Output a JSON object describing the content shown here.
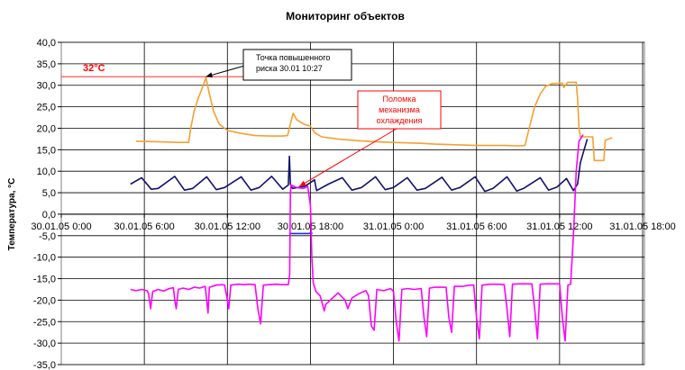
{
  "chart_data": {
    "type": "line",
    "title": "Мониторинг объектов",
    "ylabel": "Температура, °С",
    "xlabel": "",
    "ylim": [
      -35,
      40
    ],
    "y_step": 5,
    "xlim": [
      0,
      42
    ],
    "grid": true,
    "x_ticks": [
      {
        "x": 0,
        "label": "30.01.05 0:00"
      },
      {
        "x": 6,
        "label": "30.01.05 6:00"
      },
      {
        "x": 12,
        "label": "30.01.05 12:00"
      },
      {
        "x": 18,
        "label": "30.01.05 18:00"
      },
      {
        "x": 24,
        "label": "31.01.05 0:00"
      },
      {
        "x": 30,
        "label": "31.01.05 6:00"
      },
      {
        "x": 36,
        "label": "31.01.05 12:00"
      },
      {
        "x": 42,
        "label": "31.01.05 18:00"
      }
    ],
    "threshold": {
      "value": 32,
      "label": "32°С",
      "color": "#ff4040"
    },
    "annotations": [
      {
        "id": "high-risk",
        "lines": [
          "Точка повышенного",
          "риска 30.01 10:27"
        ],
        "x": 10.45,
        "y": 32,
        "color": "#000000"
      },
      {
        "id": "breakdown",
        "lines": [
          "Поломка",
          "механизма",
          "охлаждения"
        ],
        "x": 17.2,
        "y": 6.5,
        "color": "#ff0000"
      }
    ],
    "series": [
      {
        "key": "orange",
        "color": "#f5a030",
        "points": [
          [
            5.4,
            17
          ],
          [
            6.5,
            16.9
          ],
          [
            7.5,
            16.8
          ],
          [
            8.5,
            16.7
          ],
          [
            9.2,
            16.7
          ],
          [
            9.35,
            20
          ],
          [
            9.6,
            24
          ],
          [
            9.9,
            27
          ],
          [
            10.2,
            29.5
          ],
          [
            10.45,
            31.8
          ],
          [
            10.7,
            28
          ],
          [
            11,
            24
          ],
          [
            11.4,
            21
          ],
          [
            12,
            19.5
          ],
          [
            13,
            18.8
          ],
          [
            14,
            18.3
          ],
          [
            15,
            18.2
          ],
          [
            16,
            18.2
          ],
          [
            16.35,
            18.3
          ],
          [
            16.55,
            21
          ],
          [
            16.75,
            23.5
          ],
          [
            17,
            22
          ],
          [
            17.5,
            21
          ],
          [
            18,
            20.5
          ],
          [
            18.3,
            19
          ],
          [
            18.8,
            18
          ],
          [
            20,
            17.5
          ],
          [
            21,
            17.2
          ],
          [
            22,
            17
          ],
          [
            23,
            16.8
          ],
          [
            24,
            16.7
          ],
          [
            25,
            16.6
          ],
          [
            26,
            16.5
          ],
          [
            27,
            16.3
          ],
          [
            28,
            16.2
          ],
          [
            29,
            16.1
          ],
          [
            30,
            16
          ],
          [
            31,
            16
          ],
          [
            32,
            16
          ],
          [
            33,
            15.9
          ],
          [
            33.5,
            16
          ],
          [
            33.8,
            20
          ],
          [
            34.2,
            25
          ],
          [
            34.6,
            28
          ],
          [
            35,
            29.8
          ],
          [
            35.5,
            30.4
          ],
          [
            36.2,
            30.5
          ],
          [
            36.3,
            29.5
          ],
          [
            36.6,
            30.7
          ],
          [
            37.2,
            30.7
          ],
          [
            37.3,
            27
          ],
          [
            37.4,
            20
          ],
          [
            37.5,
            18
          ],
          [
            38,
            18
          ],
          [
            38.4,
            18
          ],
          [
            38.5,
            12.5
          ],
          [
            39.2,
            12.5
          ],
          [
            39.3,
            17.2
          ],
          [
            39.8,
            17.8
          ]
        ]
      },
      {
        "key": "navy",
        "color": "#10126e",
        "points": [
          [
            5,
            7
          ],
          [
            5.8,
            8.5
          ],
          [
            6.5,
            5.8
          ],
          [
            7,
            6
          ],
          [
            8.2,
            8.8
          ],
          [
            8.9,
            5.6
          ],
          [
            9.5,
            6
          ],
          [
            10.5,
            8.7
          ],
          [
            11.2,
            5.7
          ],
          [
            11.8,
            6.2
          ],
          [
            13,
            8.7
          ],
          [
            13.7,
            5.6
          ],
          [
            14.3,
            6.2
          ],
          [
            15.2,
            8.8
          ],
          [
            16,
            5.8
          ],
          [
            16.4,
            6.8
          ],
          [
            16.48,
            13.5
          ],
          [
            16.55,
            7
          ],
          [
            16.7,
            6
          ],
          [
            17.6,
            6.5
          ],
          [
            18.3,
            8
          ],
          [
            18.35,
            7
          ],
          [
            18.45,
            5.5
          ],
          [
            19.3,
            7
          ],
          [
            20.3,
            8.5
          ],
          [
            21,
            5.6
          ],
          [
            21.7,
            6.2
          ],
          [
            22.7,
            8.7
          ],
          [
            23.4,
            5.7
          ],
          [
            24,
            6.2
          ],
          [
            25,
            8.5
          ],
          [
            25.7,
            5.6
          ],
          [
            26.3,
            6
          ],
          [
            27.5,
            8.6
          ],
          [
            28.2,
            5.6
          ],
          [
            28.8,
            6.2
          ],
          [
            29.9,
            8.7
          ],
          [
            30.6,
            5.3
          ],
          [
            31.2,
            6
          ],
          [
            32.2,
            8.7
          ],
          [
            32.9,
            5.4
          ],
          [
            33.4,
            6
          ],
          [
            34.6,
            8.5
          ],
          [
            35.2,
            5.6
          ],
          [
            35.8,
            6.3
          ],
          [
            36.5,
            8.3
          ],
          [
            37,
            5.5
          ],
          [
            37.3,
            7
          ],
          [
            37.5,
            12
          ],
          [
            38,
            17.5
          ]
        ]
      },
      {
        "key": "blue",
        "color": "#1c2bff",
        "points": [
          [
            16.5,
            -4.5
          ],
          [
            17.9,
            -4.5
          ],
          [
            18,
            -4.3
          ],
          [
            18.15,
            -4.5
          ]
        ]
      },
      {
        "key": "magenta",
        "color": "#ff00ff",
        "points": [
          [
            5,
            -17.5
          ],
          [
            5.4,
            -17.8
          ],
          [
            5.8,
            -17.5
          ],
          [
            6.2,
            -17.8
          ],
          [
            6.3,
            -18.5
          ],
          [
            6.45,
            -22
          ],
          [
            6.6,
            -18
          ],
          [
            7,
            -17.5
          ],
          [
            7.4,
            -17.9
          ],
          [
            7.8,
            -17.3
          ],
          [
            8.1,
            -17.1
          ],
          [
            8.2,
            -20
          ],
          [
            8.3,
            -22
          ],
          [
            8.45,
            -17.5
          ],
          [
            8.8,
            -17.2
          ],
          [
            9.2,
            -17.5
          ],
          [
            9.6,
            -17
          ],
          [
            10,
            -17.2
          ],
          [
            10.4,
            -16.8
          ],
          [
            10.5,
            -20
          ],
          [
            10.6,
            -23
          ],
          [
            10.7,
            -17
          ],
          [
            11.2,
            -16.5
          ],
          [
            11.6,
            -16.4
          ],
          [
            11.8,
            -16.5
          ],
          [
            12,
            -20
          ],
          [
            12.1,
            -22
          ],
          [
            12.25,
            -16.5
          ],
          [
            12.8,
            -16.3
          ],
          [
            13.2,
            -16.4
          ],
          [
            13.6,
            -16.3
          ],
          [
            14,
            -16.4
          ],
          [
            14.2,
            -22
          ],
          [
            14.4,
            -25.5
          ],
          [
            14.6,
            -16.5
          ],
          [
            15,
            -16.4
          ],
          [
            15.5,
            -16.3
          ],
          [
            16,
            -16.4
          ],
          [
            16.4,
            -16.4
          ],
          [
            16.5,
            -14
          ],
          [
            16.55,
            5
          ],
          [
            16.6,
            6.8
          ],
          [
            17,
            6.2
          ],
          [
            17.5,
            6
          ],
          [
            17.8,
            6.5
          ],
          [
            18,
            2
          ],
          [
            18.1,
            -10
          ],
          [
            18.2,
            -16
          ],
          [
            18.4,
            -18
          ],
          [
            18.7,
            -19
          ],
          [
            19,
            -22.5
          ],
          [
            19.1,
            -21
          ],
          [
            19.6,
            -19.5
          ],
          [
            20,
            -18.3
          ],
          [
            20.5,
            -20
          ],
          [
            20.7,
            -22
          ],
          [
            21,
            -19.5
          ],
          [
            21.5,
            -18.5
          ],
          [
            22,
            -17.8
          ],
          [
            22.2,
            -19
          ],
          [
            22.4,
            -26
          ],
          [
            22.6,
            -27
          ],
          [
            22.8,
            -17.5
          ],
          [
            23.3,
            -17.8
          ],
          [
            23.8,
            -17.3
          ],
          [
            24,
            -18
          ],
          [
            24.2,
            -25
          ],
          [
            24.4,
            -29.5
          ],
          [
            24.6,
            -17.5
          ],
          [
            25,
            -17.3
          ],
          [
            25.5,
            -17.5
          ],
          [
            26,
            -17.3
          ],
          [
            26.2,
            -24
          ],
          [
            26.4,
            -28.5
          ],
          [
            26.6,
            -17.2
          ],
          [
            27,
            -17
          ],
          [
            27.5,
            -17
          ],
          [
            27.8,
            -17
          ],
          [
            28,
            -24
          ],
          [
            28.2,
            -27.5
          ],
          [
            28.4,
            -16.8
          ],
          [
            29,
            -16.8
          ],
          [
            29.5,
            -16.5
          ],
          [
            29.8,
            -16.5
          ],
          [
            30,
            -24
          ],
          [
            30.2,
            -29
          ],
          [
            30.4,
            -16.5
          ],
          [
            31,
            -16.3
          ],
          [
            31.5,
            -16.3
          ],
          [
            32,
            -16.4
          ],
          [
            32.2,
            -22
          ],
          [
            32.4,
            -28.5
          ],
          [
            32.6,
            -16.3
          ],
          [
            33,
            -16.2
          ],
          [
            33.5,
            -16.2
          ],
          [
            34,
            -16.2
          ],
          [
            34.2,
            -22
          ],
          [
            34.4,
            -29
          ],
          [
            34.6,
            -16.3
          ],
          [
            35,
            -16.2
          ],
          [
            35.6,
            -16.2
          ],
          [
            36,
            -16.2
          ],
          [
            36.2,
            -24
          ],
          [
            36.4,
            -29.5
          ],
          [
            36.6,
            -16.5
          ],
          [
            36.8,
            -16.3
          ],
          [
            37,
            -5
          ],
          [
            37.2,
            10
          ],
          [
            37.4,
            17
          ],
          [
            37.7,
            18.5
          ]
        ]
      }
    ]
  }
}
